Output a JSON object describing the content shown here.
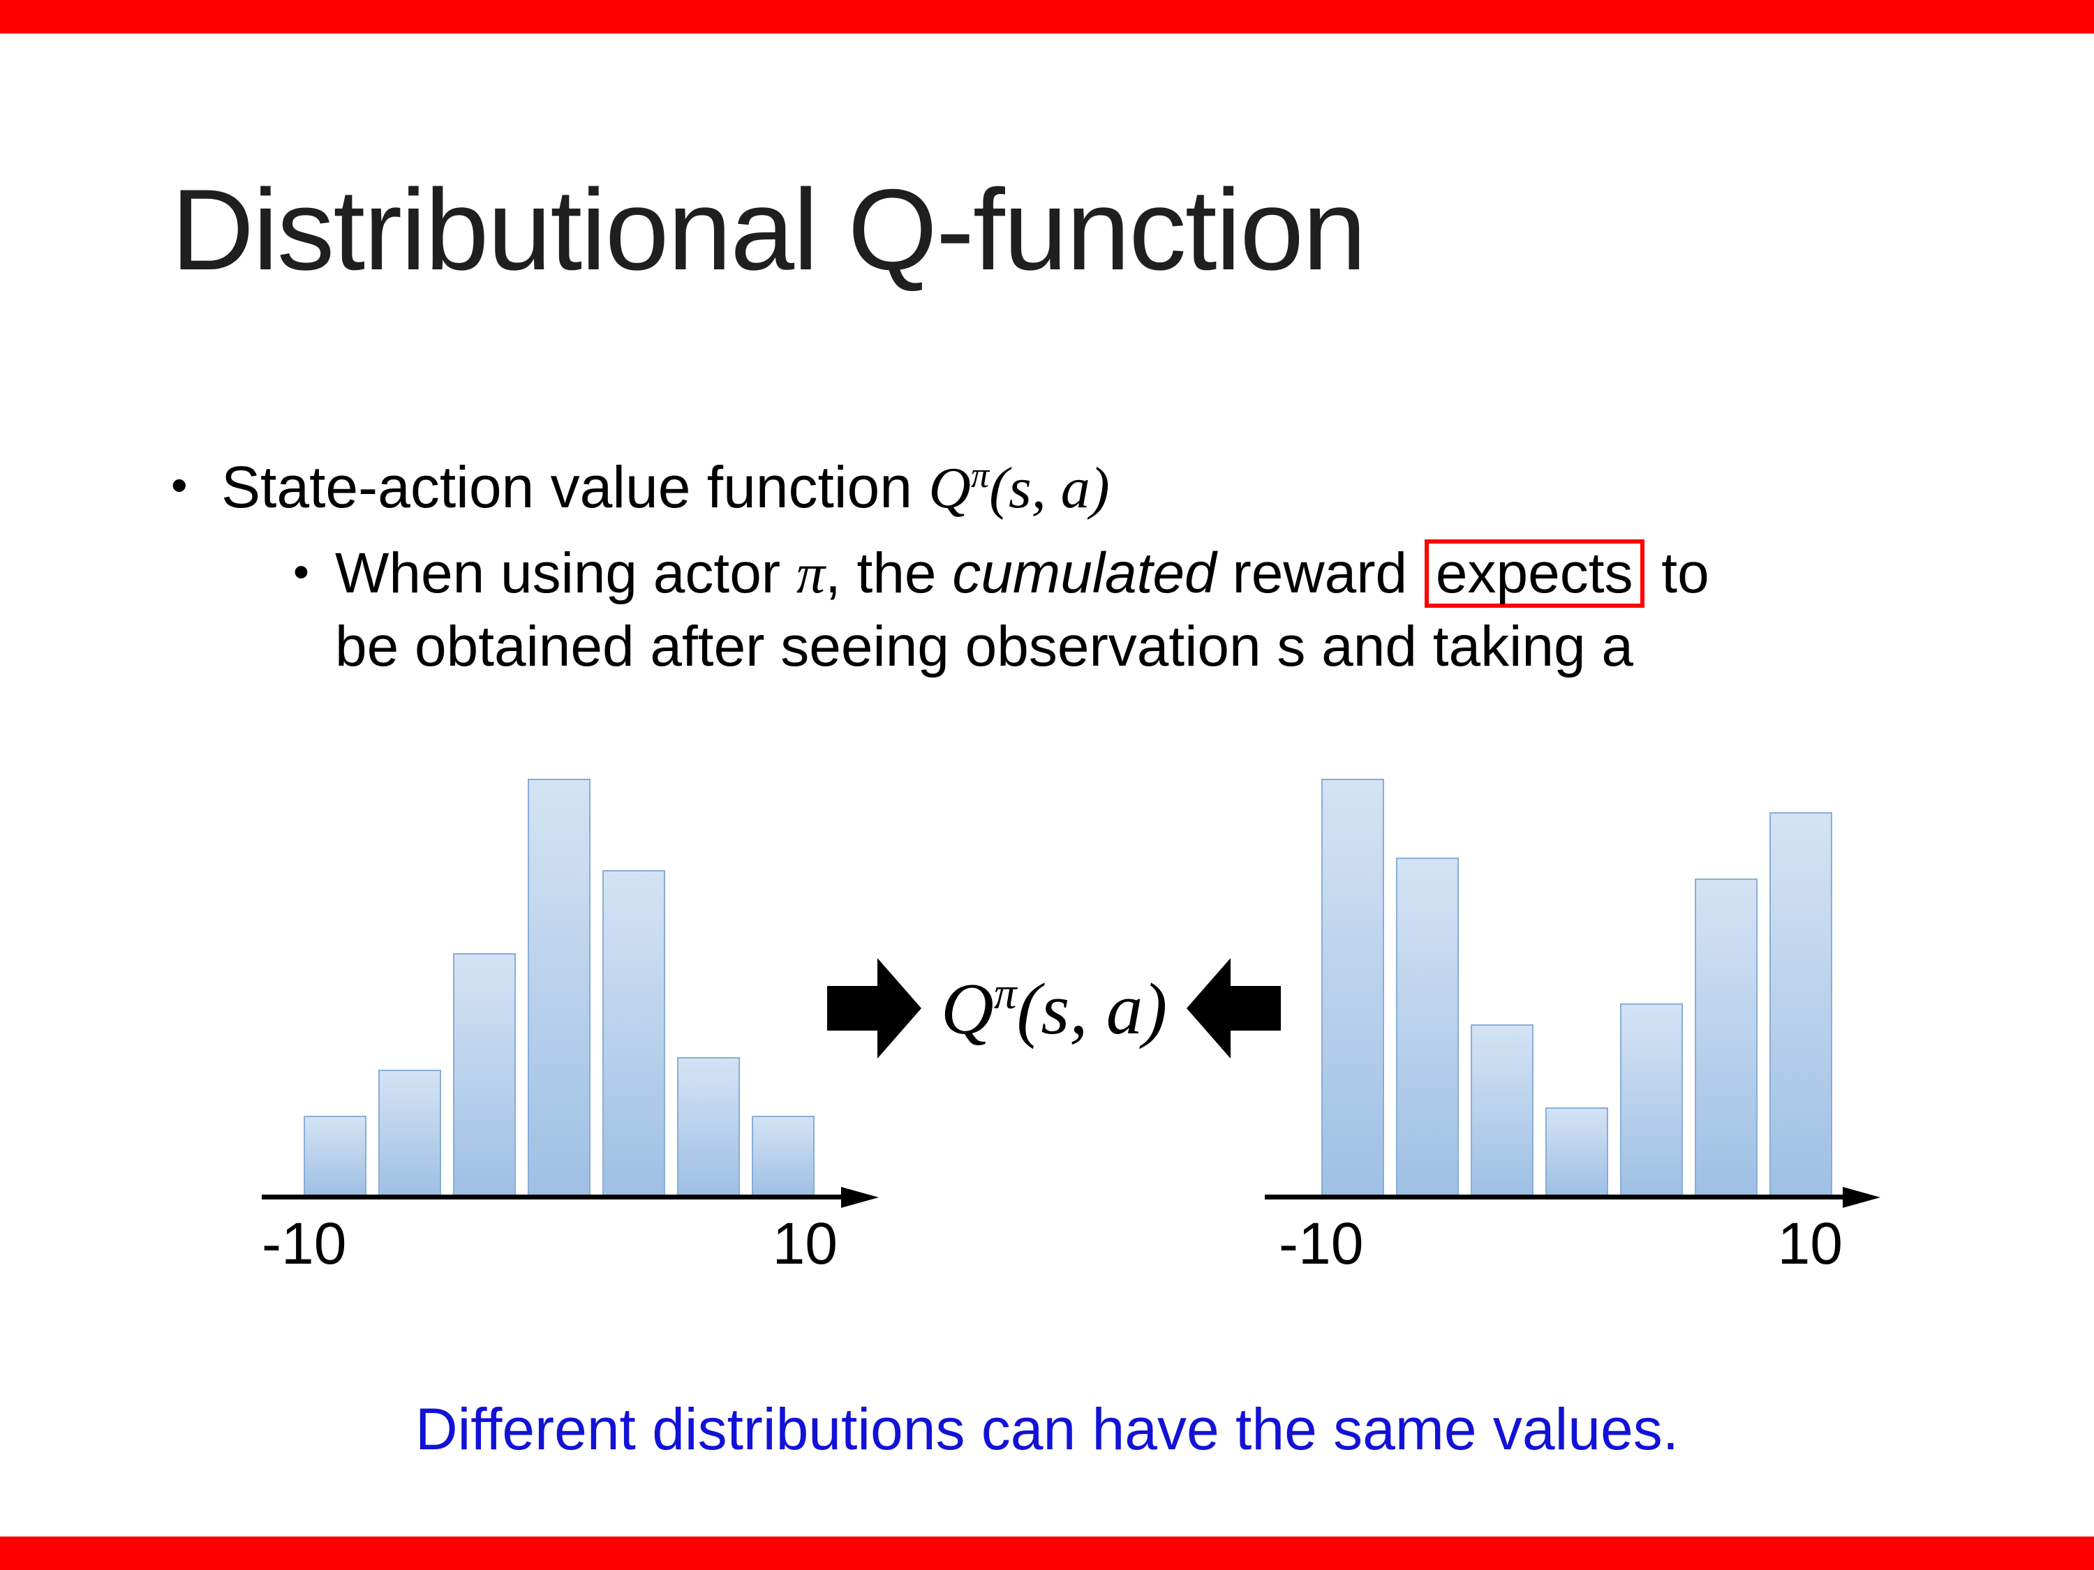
{
  "colors": {
    "red_bar": "#ff0000",
    "box_red": "#ff0000",
    "caption_blue": "#1212d6",
    "bar_fill_top": "#d4e3f4",
    "bar_fill_bottom": "#9fc0e4",
    "bar_border": "#88add8"
  },
  "bullet_char": "•",
  "title": "Distributional Q-function",
  "bullets": {
    "l1_pre": "State-action value function ",
    "math_q": "Q",
    "math_pi": "π",
    "math_args": "(s, a)",
    "l2_seg1": "When using actor ",
    "l2_pi": "π",
    "l2_seg2": ", the ",
    "l2_italic": "cumulated",
    "l2_seg3": " reward ",
    "l2_boxed": "expects",
    "l2_seg4": " to",
    "l2_line2": "be obtained after seeing observation s and taking a"
  },
  "center": {
    "math_q": "Q",
    "math_pi": "π",
    "math_args": "(s, a)"
  },
  "caption": "Different distributions can have the same values.",
  "chart_data": [
    {
      "type": "bar",
      "name": "left-histogram",
      "shape": "unimodal",
      "x_range": [
        -10,
        10
      ],
      "x_tick_labels": [
        "-10",
        "10"
      ],
      "values": [
        0.19,
        0.3,
        0.58,
        1.0,
        0.78,
        0.33,
        0.19
      ],
      "grid": false,
      "legend": false
    },
    {
      "type": "bar",
      "name": "right-histogram",
      "shape": "bimodal",
      "x_range": [
        -10,
        10
      ],
      "x_tick_labels": [
        "-10",
        "10"
      ],
      "values": [
        1.0,
        0.81,
        0.41,
        0.21,
        0.46,
        0.76,
        0.92
      ],
      "grid": false,
      "legend": false
    }
  ]
}
